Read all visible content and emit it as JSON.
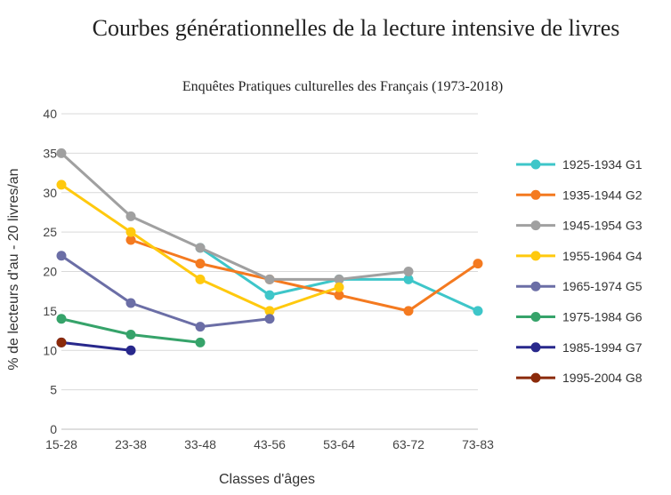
{
  "chart_data": {
    "type": "line",
    "title": "Courbes générationnelles de la lecture intensive de livres",
    "subtitle": "Enquêtes Pratiques culturelles des Français (1973-2018)",
    "xlabel": "Classes d'âges",
    "ylabel": "% de lecteurs d'au - 20 livres/an",
    "categories": [
      "15-28",
      "23-38",
      "33-48",
      "43-56",
      "53-64",
      "63-72",
      "73-83"
    ],
    "ylim": [
      0,
      40
    ],
    "yticks": [
      0,
      5,
      10,
      15,
      20,
      25,
      30,
      35,
      40
    ],
    "grid": true,
    "legend_position": "right",
    "series": [
      {
        "name": "1925-1934 G1",
        "color": "#3ec6c9",
        "values": [
          null,
          null,
          23,
          17,
          19,
          19,
          15
        ]
      },
      {
        "name": "1935-1944 G2",
        "color": "#f47a20",
        "values": [
          null,
          24,
          21,
          19,
          17,
          15,
          21
        ]
      },
      {
        "name": "1945-1954 G3",
        "color": "#a0a0a0",
        "values": [
          35,
          27,
          23,
          19,
          19,
          20,
          null
        ]
      },
      {
        "name": "1955-1964 G4",
        "color": "#ffc90e",
        "values": [
          31,
          25,
          19,
          15,
          18,
          null,
          null
        ]
      },
      {
        "name": "1965-1974 G5",
        "color": "#6b6ea6",
        "values": [
          22,
          16,
          13,
          14,
          null,
          null,
          null
        ]
      },
      {
        "name": "1975-1984 G6",
        "color": "#36a36a",
        "values": [
          14,
          12,
          11,
          null,
          null,
          null,
          null
        ]
      },
      {
        "name": "1985-1994 G7",
        "color": "#28288c",
        "values": [
          11,
          10,
          null,
          null,
          null,
          null,
          null
        ]
      },
      {
        "name": "1995-2004 G8",
        "color": "#8b2a0a",
        "values": [
          11,
          null,
          null,
          null,
          null,
          null,
          null
        ]
      }
    ]
  }
}
